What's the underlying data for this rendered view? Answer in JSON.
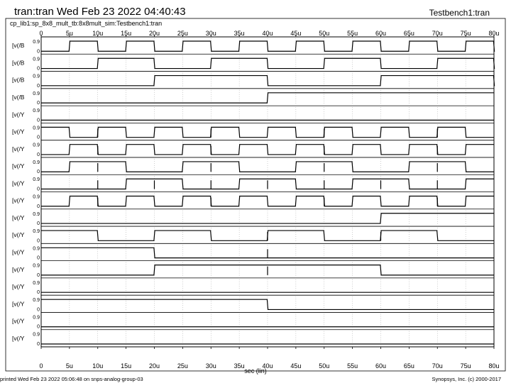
{
  "header": {
    "title": "tran:tran Wed Feb 23 2022 04:40:43",
    "title_right": "Testbench1:tran",
    "subtitle": "cp_lib1:sp_8x8_mult_tb:8x8mult_sim:Testbench1:tran"
  },
  "footer": {
    "left": "printed Wed Feb 23 2022 05:06:48 on snps-analog-group-03",
    "right": "Synopsys, Inc. (c) 2000-2017"
  },
  "chart_data": {
    "type": "line",
    "xlabel": "sec (lin)",
    "xlim": [
      0,
      80
    ],
    "x_ticks": [
      "0",
      "5u",
      "10u",
      "15u",
      "20u",
      "25u",
      "30u",
      "35u",
      "40u",
      "45u",
      "50u",
      "55u",
      "60u",
      "65u",
      "70u",
      "75u",
      "80u"
    ],
    "y_ticks": [
      "0",
      "0.9"
    ],
    "ylim": [
      0,
      0.9
    ],
    "series": [
      {
        "name": "[v(/B",
        "transitions": [
          5,
          10,
          15,
          20,
          25,
          30,
          35,
          40,
          45,
          50,
          55,
          60,
          65,
          70,
          75,
          80
        ],
        "initial": 0,
        "glitches": []
      },
      {
        "name": "[v(/B",
        "transitions": [
          10,
          20,
          30,
          40,
          50,
          60,
          70,
          80
        ],
        "initial": 0,
        "glitches": []
      },
      {
        "name": "[v(/B",
        "transitions": [
          20,
          40,
          60,
          80
        ],
        "initial": 0,
        "glitches": []
      },
      {
        "name": "[v(/B",
        "transitions": [
          40
        ],
        "initial": 0,
        "glitches": []
      },
      {
        "name": "[v(/Y",
        "transitions": [],
        "initial": 0,
        "glitches": []
      },
      {
        "name": "[v(/Y",
        "transitions": [
          5,
          10,
          15,
          20,
          25,
          30,
          35,
          40,
          45,
          50,
          55,
          60,
          65,
          70,
          75
        ],
        "initial": 1,
        "glitches": [
          10,
          30,
          50,
          70
        ]
      },
      {
        "name": "[v(/Y",
        "transitions": [
          5,
          10,
          15,
          20,
          25,
          30,
          35,
          40,
          45,
          50,
          55,
          60,
          65,
          70,
          75
        ],
        "initial": 0,
        "glitches": [
          10,
          30,
          50,
          70
        ]
      },
      {
        "name": "[v(/Y",
        "transitions": [
          5,
          15,
          25,
          35,
          45,
          55,
          65,
          75
        ],
        "initial": 0,
        "glitches": [
          10,
          30,
          50,
          70
        ]
      },
      {
        "name": "[v(/Y",
        "transitions": [
          15,
          25,
          35,
          45,
          55,
          65,
          75
        ],
        "initial": 0,
        "glitches": [
          10,
          20,
          30,
          40,
          50,
          60,
          70
        ]
      },
      {
        "name": "[v(/Y",
        "transitions": [
          5,
          10,
          15,
          20,
          25,
          30,
          35,
          40,
          45,
          50,
          55,
          60,
          65,
          70,
          75
        ],
        "initial": 0,
        "glitches": [
          10,
          30,
          50,
          70
        ]
      },
      {
        "name": "[v(/Y",
        "transitions": [
          60
        ],
        "initial": 0,
        "glitches": []
      },
      {
        "name": "[v(/Y",
        "transitions": [
          10,
          20,
          30,
          40,
          50,
          60,
          70
        ],
        "initial": 1,
        "glitches": [
          40,
          60
        ]
      },
      {
        "name": "[v(/Y",
        "transitions": [
          20
        ],
        "initial": 1,
        "glitches": [
          40
        ]
      },
      {
        "name": "[v(/Y",
        "transitions": [
          20,
          60
        ],
        "initial": 0,
        "glitches": [
          40
        ]
      },
      {
        "name": "[v(/Y",
        "transitions": [],
        "initial": 0,
        "glitches": []
      },
      {
        "name": "[v(/Y",
        "transitions": [
          40
        ],
        "initial": 1,
        "glitches": []
      },
      {
        "name": "[v(/Y",
        "transitions": [],
        "initial": 0,
        "glitches": []
      },
      {
        "name": "[v(/Y",
        "transitions": [],
        "initial": 0,
        "glitches": []
      }
    ]
  }
}
